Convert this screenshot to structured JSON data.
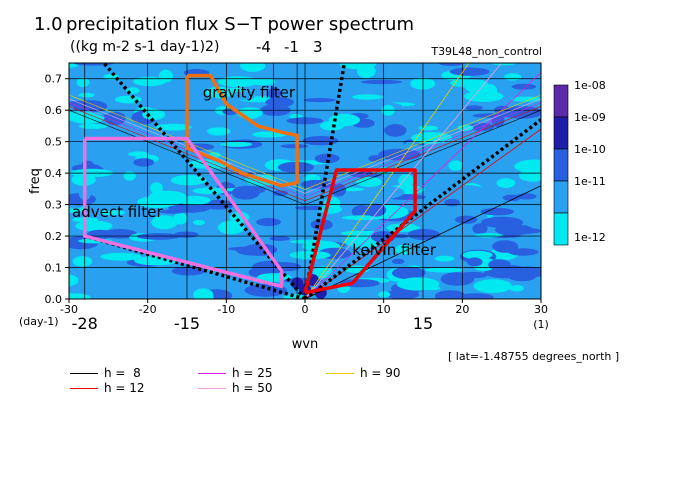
{
  "header": {
    "title": "precipitation flux S−T power spectrum",
    "corner_number": "1.0",
    "units": "((kg m-2 s-1 day-1)2)",
    "top_markers": [
      "-4",
      "-1",
      "3"
    ],
    "run_name": "T39L48_non_control",
    "lat_note": "[ lat=-1.48755 degrees_north ]"
  },
  "colors": {
    "level1": "#00e8f0",
    "level2": "#2aa0f0",
    "level3": "#2860e0",
    "level4": "#1e1ea8",
    "level5": "#5a2aa8",
    "gravity": "#f07010",
    "advect": "#f070e0",
    "kelvin": "#f00000"
  },
  "chart_data": {
    "type": "heatmap",
    "title": "precipitation flux S−T power spectrum",
    "xlabel": "wvn",
    "ylabel": "freq",
    "x_unit": "(1)",
    "y_unit": "(day-1)",
    "xlim": [
      -30,
      30
    ],
    "ylim": [
      0,
      0.75
    ],
    "x_ticks": [
      -30,
      -20,
      -10,
      0,
      10,
      20,
      30
    ],
    "y_ticks": [
      0.0,
      0.1,
      0.2,
      0.3,
      0.4,
      0.5,
      0.6,
      0.7
    ],
    "x_marker_labels_bottom": [
      -28,
      -15,
      15
    ],
    "colorbar": {
      "levels": [
        "1e-08",
        "1e-09",
        "1e-10",
        "1e-11",
        "1e-12"
      ]
    },
    "filters": [
      {
        "name": "gravity filter",
        "color_key": "gravity",
        "points": [
          [
            -15,
            0.71
          ],
          [
            -12,
            0.71
          ],
          [
            -10,
            0.62
          ],
          [
            -6,
            0.55
          ],
          [
            -3,
            0.53
          ],
          [
            -1,
            0.52
          ],
          [
            -1,
            0.37
          ],
          [
            -3,
            0.36
          ],
          [
            -8,
            0.4
          ],
          [
            -11,
            0.44
          ],
          [
            -15,
            0.48
          ],
          [
            -15,
            0.71
          ]
        ]
      },
      {
        "name": "advect filter",
        "color_key": "advect",
        "points": [
          [
            -28,
            0.51
          ],
          [
            -15,
            0.51
          ],
          [
            -3,
            0.09
          ],
          [
            -3,
            0.04
          ],
          [
            -28,
            0.2
          ],
          [
            -28,
            0.51
          ]
        ]
      },
      {
        "name": "kelvin filter",
        "color_key": "kelvin",
        "points": [
          [
            0,
            0.02
          ],
          [
            4,
            0.41
          ],
          [
            14,
            0.41
          ],
          [
            14,
            0.28
          ],
          [
            6,
            0.05
          ],
          [
            0,
            0.02
          ]
        ]
      }
    ],
    "dispersion_legend": [
      {
        "label": "h =  8",
        "color": "#000000"
      },
      {
        "label": "h = 12",
        "color": "#f00000"
      },
      {
        "label": "h = 25",
        "color": "#e020e0"
      },
      {
        "label": "h = 50",
        "color": "#f0a0e0"
      },
      {
        "label": "h = 90",
        "color": "#e8d000"
      }
    ],
    "grid": true
  }
}
